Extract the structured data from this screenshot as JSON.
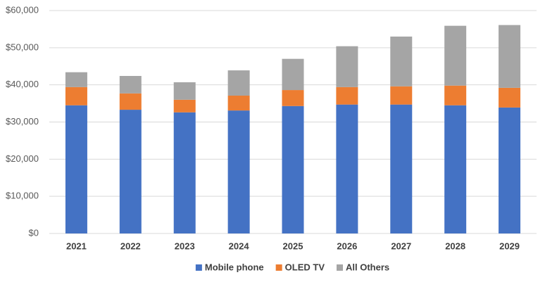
{
  "chart_data": {
    "type": "stacked-bar",
    "categories": [
      "2021",
      "2022",
      "2023",
      "2024",
      "2025",
      "2026",
      "2027",
      "2028",
      "2029"
    ],
    "series": [
      {
        "name": "Mobile phone",
        "color": "#4472c4",
        "values": [
          34500,
          33300,
          32600,
          33100,
          34300,
          34700,
          34700,
          34500,
          33900
        ]
      },
      {
        "name": "OLED TV",
        "color": "#ed7d31",
        "values": [
          4900,
          4400,
          3400,
          4000,
          4300,
          4700,
          4900,
          5300,
          5300
        ]
      },
      {
        "name": "All Others",
        "color": "#a5a5a5",
        "values": [
          4000,
          4700,
          4700,
          6800,
          8400,
          11000,
          13400,
          16100,
          16900
        ]
      }
    ],
    "ylim": [
      0,
      60000
    ],
    "yticks": [
      {
        "value": 0,
        "label": "$0"
      },
      {
        "value": 10000,
        "label": "$10,000"
      },
      {
        "value": 20000,
        "label": "$20,000"
      },
      {
        "value": 30000,
        "label": "$30,000"
      },
      {
        "value": 40000,
        "label": "$40,000"
      },
      {
        "value": 50000,
        "label": "$50,000"
      },
      {
        "value": 60000,
        "label": "$60,000"
      }
    ],
    "grid": true,
    "legend": "bottom"
  }
}
